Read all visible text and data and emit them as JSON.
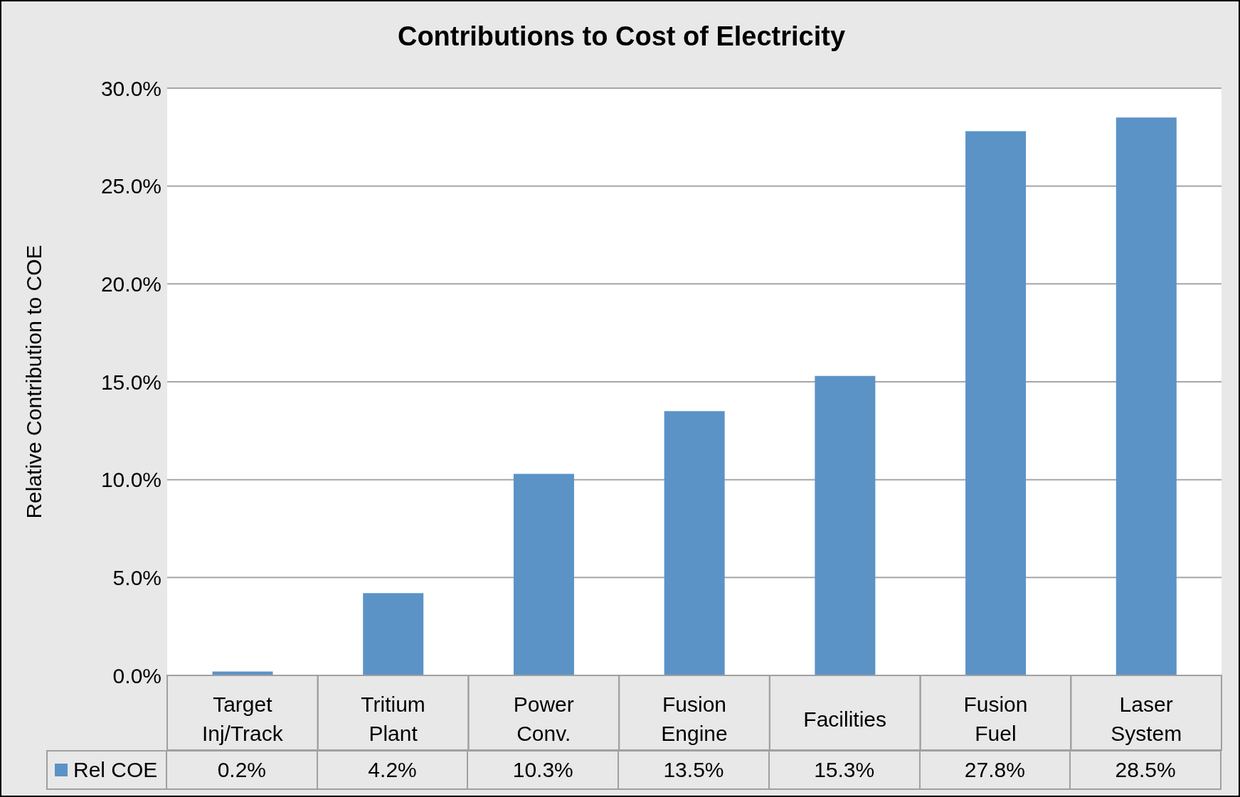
{
  "chart_data": {
    "type": "bar",
    "title": "Contributions to Cost of Electricity",
    "ylabel": "Relative Contribution to COE",
    "categories": [
      "Target Inj/Track",
      "Tritium Plant",
      "Power Conv.",
      "Fusion Engine",
      "Facilities",
      "Fusion Fuel",
      "Laser System"
    ],
    "series": [
      {
        "name": "Rel COE",
        "color": "#5b93c7",
        "values": [
          0.2,
          4.2,
          10.3,
          13.5,
          15.3,
          27.8,
          28.5
        ],
        "value_labels": [
          "0.2%",
          "4.2%",
          "10.3%",
          "13.5%",
          "15.3%",
          "27.8%",
          "28.5%"
        ]
      }
    ],
    "ylim": [
      0,
      30
    ],
    "yticks": [
      {
        "value": 0,
        "label": "0.0%"
      },
      {
        "value": 5,
        "label": "5.0%"
      },
      {
        "value": 10,
        "label": "10.0%"
      },
      {
        "value": 15,
        "label": "15.0%"
      },
      {
        "value": 20,
        "label": "20.0%"
      },
      {
        "value": 25,
        "label": "25.0%"
      },
      {
        "value": 30,
        "label": "30.0%"
      }
    ],
    "grid": "y",
    "legend": "bottom"
  }
}
